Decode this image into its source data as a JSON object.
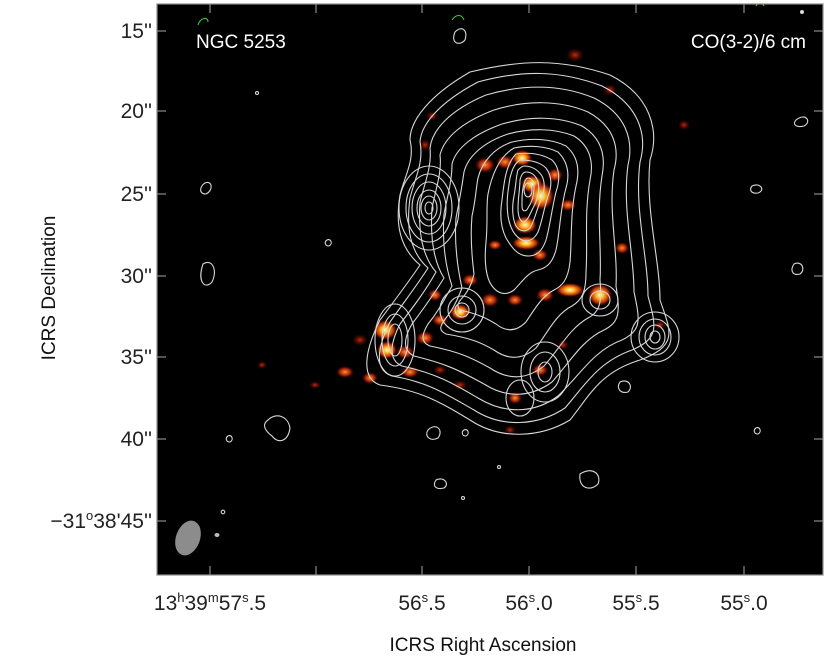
{
  "figure": {
    "object_label": "NGC 5253",
    "map_label": "CO(3-2)/6 cm",
    "colors": {
      "background": "#000000",
      "contour": "#d8d8d8",
      "emission_core": "#ffffb0",
      "emission_mid": "#ff7a10",
      "emission_faint": "#c81e0a",
      "beam": "#8c8c8c",
      "frame": "#8c8c8c"
    }
  },
  "axes": {
    "xlabel": "ICRS Right Ascension",
    "ylabel": "ICRS Declination",
    "dec_ticks": [
      "15''",
      "20''",
      "25''",
      "30''",
      "35''",
      "40''"
    ],
    "dec_origin": {
      "sign": "−",
      "deg": "31",
      "deg_unit": "o",
      "arcmin": "38'",
      "arcsec": "45''"
    },
    "ra_origin": {
      "h": "13",
      "h_unit": "h",
      "m": "39",
      "m_unit": "m",
      "s_int": "57",
      "s_unit": "s",
      "s_frac": ".5"
    },
    "ra_ticks": [
      {
        "s_int": "56",
        "s_unit": "s",
        "s_frac": ".5"
      },
      {
        "s_int": "56",
        "s_unit": "s",
        "s_frac": ".0"
      },
      {
        "s_int": "55",
        "s_unit": "s",
        "s_frac": ".5"
      },
      {
        "s_int": "55",
        "s_unit": "s",
        "s_frac": ".0"
      }
    ]
  }
}
